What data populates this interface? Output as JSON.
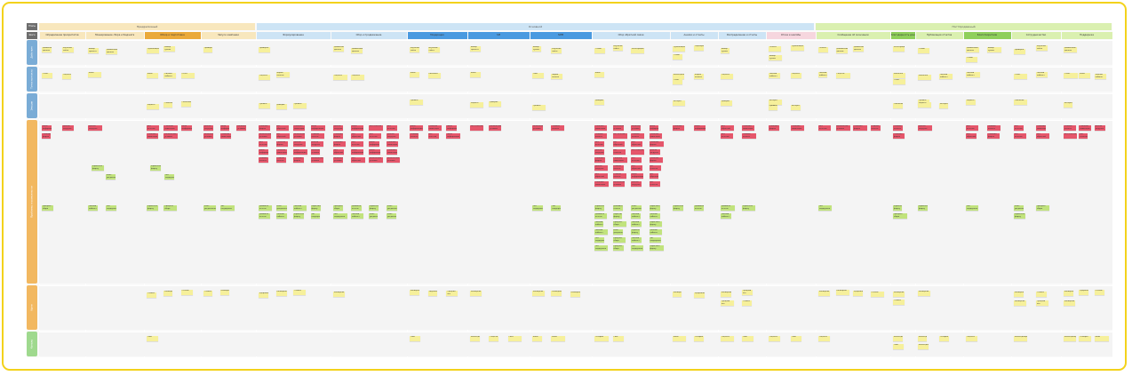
{
  "colors": {
    "frame": "#f3d21b",
    "phase_yellow": "#f8e7bd",
    "phase_blue": "#cde4f5",
    "phase_green": "#daf0b0",
    "lane_blue": "#7aacd6",
    "lane_orange": "#f2b860",
    "lane_green": "#9fd98e",
    "sticky_yellow": "#f6f09b",
    "sticky_pink": "#e5566b",
    "sticky_green": "#c1e37d"
  },
  "header_tags": [
    "Этапы",
    "Шаги"
  ],
  "phases": [
    {
      "label": "Предрелизный",
      "color": "#f8e7bd"
    },
    {
      "label": "Основной",
      "color": "#cde4f5"
    },
    {
      "label": "Постпродажный",
      "color": "#daf0b0"
    }
  ],
  "steps": [
    {
      "label": "Определение приоритетов",
      "color": "#f8e7bd"
    },
    {
      "label": "Планирование сбора и бюджета",
      "color": "#f8e7bd"
    },
    {
      "label": "Обзор и подготовка",
      "color": "#eaa93a"
    },
    {
      "label": "Запуск кампании",
      "color": "#f8e7bd"
    },
    {
      "label": "Формулирование",
      "color": "#cde4f5"
    },
    {
      "label": "Сбор и продвижение",
      "color": "#cde4f5"
    },
    {
      "label": "Модерация",
      "color": "#4a9ae0"
    },
    {
      "label": "SM",
      "color": "#4a9ae0"
    },
    {
      "label": "SMM",
      "color": "#4a9ae0"
    },
    {
      "label": "Сбор обратной связи",
      "color": "#cde4f5"
    },
    {
      "label": "Анализ и отчеты",
      "color": "#cde4f5"
    },
    {
      "label": "Распределение и отчеты",
      "color": "#cde4f5"
    },
    {
      "label": "Отказ и жалобы",
      "color": "#f6d6de"
    },
    {
      "label": "Сообщение об окончании",
      "color": "#daf0b0"
    },
    {
      "label": "Благодарность донорам",
      "color": "#8fcf5b"
    },
    {
      "label": "Публикация отчетов",
      "color": "#daf0b0"
    },
    {
      "label": "Благотворители",
      "color": "#8fcf5b"
    },
    {
      "label": "Сотрудничество",
      "color": "#daf0b0"
    },
    {
      "label": "Поддержка",
      "color": "#daf0b0"
    }
  ],
  "lanes": [
    {
      "label": "Действия",
      "color": "#7aacd6"
    },
    {
      "label": "Точки контакта",
      "color": "#7aacd6"
    },
    {
      "label": "Эмоции",
      "color": "#7aacd6"
    },
    {
      "label": "Проблемы и возможности",
      "color": "#f2b860"
    },
    {
      "label": "Идеи",
      "color": "#f2b860"
    },
    {
      "label": "Каналы",
      "color": "#9fd98e"
    }
  ],
  "notes": {
    "actions": [
      "Изучение сайта",
      "Выбор проекта",
      "Добавление данных",
      "Проверка",
      "Выбор суммы",
      "Оплата",
      "Регистрация",
      "Подтверждение",
      "Отзыв",
      "Публикация"
    ],
    "touchpoints": [
      "Сайт",
      "Личный кабинет",
      "Email",
      "Соцсети",
      "Мессенджер",
      "Форма оплаты",
      "Отчет",
      "Рассылка"
    ],
    "emotions": [
      "Интерес",
      "Сомнение",
      "Доверие",
      "Радость",
      "Тревога"
    ],
    "problems": [
      "Сложная навигация",
      "Долгая загрузка",
      "Нет отчетов",
      "Непонятные условия",
      "Мало информации",
      "Ошибки оплаты",
      "Нет обратной связи",
      "Сложная форма"
    ],
    "ideas": [
      "Упростить форму",
      "Добавить отчеты",
      "Push-уведомления",
      "Личный кабинет",
      "Чат поддержки",
      "Прогресс сбора"
    ],
    "channels": [
      "Сайт",
      "Email",
      "Соцсети",
      "Мессенджеры",
      "Телефон"
    ],
    "kpis": [
      "Конверсия",
      "Удержание",
      "Средний чек",
      "Отказы"
    ]
  }
}
